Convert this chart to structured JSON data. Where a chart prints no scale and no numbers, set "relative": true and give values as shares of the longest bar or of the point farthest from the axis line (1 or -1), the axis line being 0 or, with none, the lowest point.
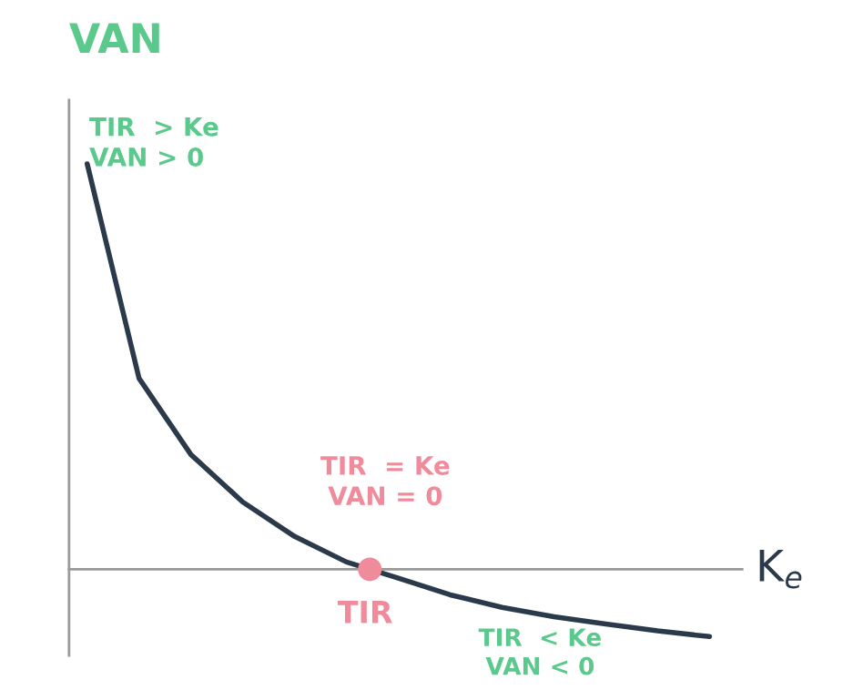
{
  "chart_data": {
    "type": "line",
    "relative": true,
    "xlabel": "K$_{e}$",
    "ylabel": "VAN",
    "categories": [
      null,
      null,
      null,
      null,
      null,
      null,
      null,
      null,
      null,
      null,
      null,
      null,
      null
    ],
    "series": [
      {
        "color": "#2b3a4a",
        "values": [
          1.0,
          0.471,
          0.283,
          0.166,
          0.081,
          0.018,
          -0.022,
          -0.063,
          -0.094,
          -0.117,
          -0.135,
          -0.152,
          -0.166
        ]
      }
    ],
    "annotations": [
      "TIR  > Ke\nVAN > 0",
      "TIR  = Ke\nVAN = 0",
      "TIR",
      "TIR  < Ke\nVAN < 0"
    ],
    "legend": false,
    "marker": "none",
    "line_style": "solid"
  }
}
